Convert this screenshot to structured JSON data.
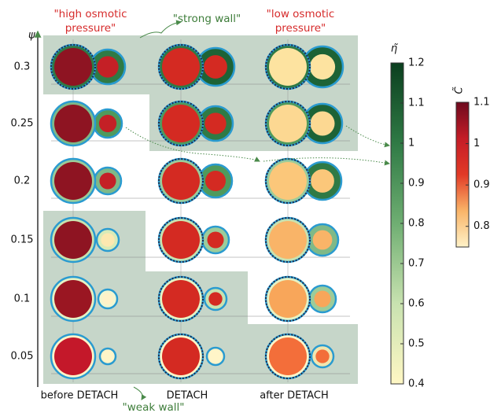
{
  "axis_label": "ψ",
  "rows": [
    0.3,
    0.25,
    0.2,
    0.15,
    0.1,
    0.05
  ],
  "columns": [
    "before DETACH",
    "DETACH",
    "after DETACH"
  ],
  "annotations": {
    "high_osmotic": [
      "\"high osmotic",
      "pressure\""
    ],
    "strong_wall": "\"strong wall\"",
    "low_osmotic": [
      "\"low osmotic",
      "pressure\""
    ],
    "weak_wall": "\"weak wall\""
  },
  "colorbars": [
    {
      "title": "η̃",
      "lim": [
        0.4,
        1.2
      ],
      "ticks": [
        0.4,
        0.5,
        0.6,
        0.7,
        0.8,
        0.9,
        1,
        1.1,
        1.2
      ],
      "colors": [
        "#fff7c4",
        "#c8e2b0",
        "#6fae72",
        "#2f7a45",
        "#0b3f1f"
      ]
    },
    {
      "title": "C̃",
      "lim": [
        0.75,
        1.1
      ],
      "ticks": [
        0.8,
        0.9,
        1,
        1.1
      ],
      "colors": [
        "#fff2c8",
        "#f9b468",
        "#e23a26",
        "#c41d27",
        "#6e0a1e"
      ]
    }
  ]
}
